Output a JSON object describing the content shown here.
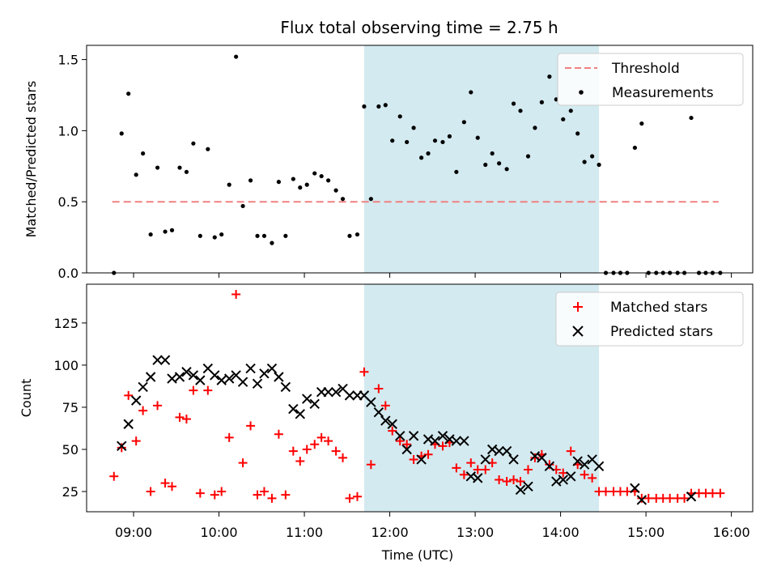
{
  "chart_data": [
    {
      "type": "scatter",
      "title": "Flux total observing time = 2.75 h",
      "xlabel": "",
      "ylabel": "Matched/Predicted stars",
      "xlim": [
        8.45,
        16.25
      ],
      "ylim": [
        0,
        1.6
      ],
      "yticks": [
        0.0,
        0.5,
        1.0,
        1.5
      ],
      "ytick_labels": [
        "0.0",
        "0.5",
        "1.0",
        "1.5"
      ],
      "xticks": [
        9,
        10,
        11,
        12,
        13,
        14,
        15,
        16
      ],
      "shaded_span": [
        11.7,
        14.45
      ],
      "shade_color": "#d3eaf0",
      "legend": [
        "Threshold",
        "Measurements"
      ],
      "legend_position": "upper right",
      "threshold": {
        "name": "Threshold",
        "y": 0.5,
        "x": [
          8.75,
          15.85
        ],
        "color": "#f08080",
        "style": "dashed"
      },
      "series": [
        {
          "name": "Measurements",
          "marker": "dot",
          "color": "#000000",
          "x": [
            8.77,
            8.86,
            8.94,
            9.03,
            9.11,
            9.2,
            9.28,
            9.37,
            9.45,
            9.54,
            9.62,
            9.7,
            9.78,
            9.87,
            9.95,
            10.03,
            10.12,
            10.2,
            10.28,
            10.37,
            10.45,
            10.53,
            10.62,
            10.7,
            10.78,
            10.87,
            10.95,
            11.03,
            11.12,
            11.2,
            11.28,
            11.37,
            11.45,
            11.53,
            11.62,
            11.7,
            11.78,
            11.87,
            11.95,
            12.03,
            12.12,
            12.2,
            12.28,
            12.37,
            12.45,
            12.53,
            12.62,
            12.7,
            12.78,
            12.87,
            12.95,
            13.03,
            13.12,
            13.2,
            13.28,
            13.37,
            13.45,
            13.53,
            13.62,
            13.7,
            13.78,
            13.87,
            13.95,
            14.03,
            14.12,
            14.2,
            14.28,
            14.37,
            14.45,
            14.53,
            14.62,
            14.7,
            14.78,
            14.87,
            14.95,
            15.03,
            15.12,
            15.2,
            15.28,
            15.37,
            15.45,
            15.53,
            15.62,
            15.7,
            15.78,
            15.87
          ],
          "y": [
            0.0,
            0.98,
            1.26,
            0.69,
            0.84,
            0.27,
            0.74,
            0.29,
            0.3,
            0.74,
            0.71,
            0.91,
            0.26,
            0.87,
            0.25,
            0.27,
            0.62,
            1.52,
            0.47,
            0.65,
            0.26,
            0.26,
            0.21,
            0.64,
            0.26,
            0.66,
            0.6,
            0.62,
            0.7,
            0.68,
            0.65,
            0.58,
            0.52,
            0.26,
            0.27,
            1.17,
            0.52,
            1.17,
            1.18,
            0.93,
            1.1,
            0.92,
            1.02,
            0.81,
            0.84,
            0.93,
            0.92,
            0.96,
            0.71,
            1.06,
            1.27,
            0.95,
            0.76,
            0.84,
            0.77,
            0.73,
            1.19,
            1.14,
            0.82,
            1.02,
            1.2,
            1.38,
            1.22,
            1.08,
            1.14,
            0.98,
            0.78,
            0.82,
            0.76,
            0.0,
            0.0,
            0.0,
            0.0,
            0.88,
            1.05,
            0.0,
            0.0,
            0.0,
            0.0,
            0.0,
            0.0,
            1.09,
            0.0,
            0.0,
            0.0,
            0.0
          ]
        }
      ]
    },
    {
      "type": "scatter",
      "title": "",
      "xlabel": "Time (UTC)",
      "ylabel": "Count",
      "xlim": [
        8.45,
        16.25
      ],
      "ylim": [
        13,
        148
      ],
      "yticks": [
        25,
        50,
        75,
        100,
        125
      ],
      "ytick_labels": [
        "25",
        "50",
        "75",
        "100",
        "125"
      ],
      "xticks": [
        9,
        10,
        11,
        12,
        13,
        14,
        15,
        16
      ],
      "xtick_labels": [
        "09:00",
        "10:00",
        "11:00",
        "12:00",
        "13:00",
        "14:00",
        "15:00",
        "16:00"
      ],
      "shaded_span": [
        11.7,
        14.45
      ],
      "shade_color": "#d3eaf0",
      "legend": [
        "Matched stars",
        "Predicted stars"
      ],
      "legend_position": "upper right",
      "series": [
        {
          "name": "Matched stars",
          "marker": "plus",
          "color": "#ff0000",
          "x": [
            8.77,
            8.86,
            8.94,
            9.03,
            9.11,
            9.2,
            9.28,
            9.37,
            9.45,
            9.54,
            9.62,
            9.7,
            9.78,
            9.87,
            9.95,
            10.03,
            10.12,
            10.2,
            10.28,
            10.37,
            10.45,
            10.53,
            10.62,
            10.7,
            10.78,
            10.87,
            10.95,
            11.03,
            11.12,
            11.2,
            11.28,
            11.37,
            11.45,
            11.53,
            11.62,
            11.7,
            11.78,
            11.87,
            11.95,
            12.03,
            12.12,
            12.2,
            12.28,
            12.37,
            12.45,
            12.53,
            12.62,
            12.7,
            12.78,
            12.87,
            12.95,
            13.03,
            13.12,
            13.2,
            13.28,
            13.37,
            13.45,
            13.53,
            13.62,
            13.7,
            13.78,
            13.87,
            13.95,
            14.03,
            14.12,
            14.2,
            14.28,
            14.37,
            14.45,
            14.53,
            14.62,
            14.7,
            14.78,
            14.87,
            14.95,
            15.03,
            15.12,
            15.2,
            15.28,
            15.37,
            15.45,
            15.53,
            15.62,
            15.7,
            15.78,
            15.87
          ],
          "y": [
            34,
            51,
            82,
            55,
            73,
            25,
            76,
            30,
            28,
            69,
            68,
            85,
            24,
            85,
            23,
            25,
            57,
            142,
            42,
            64,
            23,
            25,
            21,
            59,
            23,
            49,
            43,
            50,
            53,
            57,
            55,
            49,
            45,
            21,
            22,
            96,
            41,
            86,
            76,
            61,
            55,
            53,
            44,
            46,
            47,
            53,
            52,
            54,
            39,
            35,
            42,
            38,
            38,
            42,
            32,
            31,
            32,
            31,
            38,
            45,
            47,
            41,
            38,
            36,
            49,
            41,
            35,
            33,
            25,
            25,
            25,
            25,
            25,
            25,
            21,
            21,
            21,
            21,
            21,
            21,
            21,
            24,
            24,
            24,
            24,
            24
          ]
        },
        {
          "name": "Predicted stars",
          "marker": "x",
          "color": "#000000",
          "x": [
            8.86,
            8.94,
            9.03,
            9.11,
            9.2,
            9.28,
            9.37,
            9.45,
            9.54,
            9.62,
            9.7,
            9.78,
            9.87,
            9.95,
            10.03,
            10.12,
            10.2,
            10.28,
            10.37,
            10.45,
            10.53,
            10.62,
            10.7,
            10.78,
            10.87,
            10.95,
            11.03,
            11.12,
            11.2,
            11.28,
            11.37,
            11.45,
            11.53,
            11.62,
            11.7,
            11.78,
            11.87,
            11.95,
            12.03,
            12.12,
            12.2,
            12.28,
            12.37,
            12.45,
            12.53,
            12.62,
            12.7,
            12.78,
            12.87,
            12.95,
            13.03,
            13.12,
            13.2,
            13.28,
            13.37,
            13.45,
            13.53,
            13.62,
            13.7,
            13.78,
            13.87,
            13.95,
            14.03,
            14.12,
            14.2,
            14.28,
            14.37,
            14.45,
            14.87,
            14.95,
            15.53
          ],
          "y": [
            52,
            65,
            79,
            87,
            93,
            103,
            103,
            92,
            93,
            96,
            94,
            91,
            98,
            94,
            91,
            92,
            94,
            90,
            98,
            89,
            95,
            98,
            93,
            87,
            74,
            71,
            80,
            77,
            84,
            84,
            84,
            86,
            82,
            82,
            82,
            78,
            72,
            67,
            65,
            58,
            50,
            58,
            44,
            56,
            55,
            58,
            56,
            55,
            55,
            34,
            33,
            44,
            50,
            49,
            49,
            44,
            26,
            28,
            46,
            45,
            40,
            31,
            32,
            34,
            43,
            41,
            44,
            40,
            27,
            20,
            22
          ]
        }
      ]
    }
  ]
}
